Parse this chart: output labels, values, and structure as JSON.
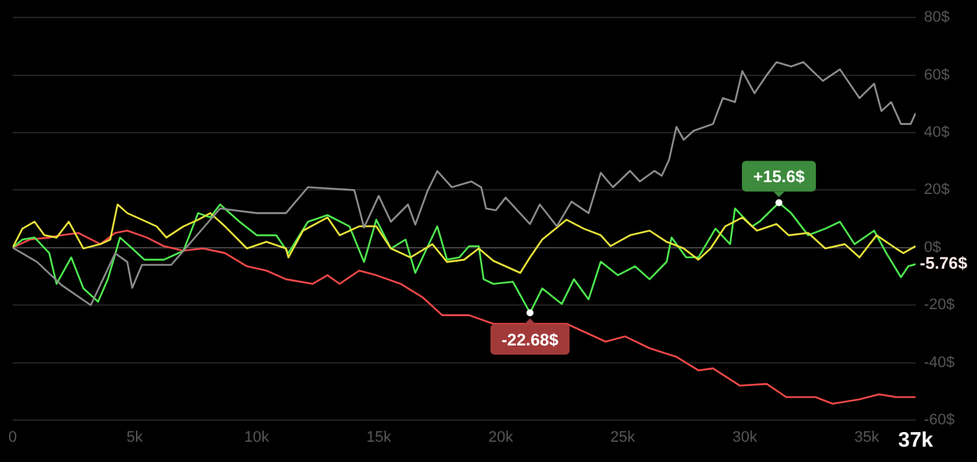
{
  "chart_data": {
    "type": "line",
    "xlim": [
      0,
      37000
    ],
    "xticks": [
      {
        "value": 0,
        "label": "0"
      },
      {
        "value": 5000,
        "label": "5k"
      },
      {
        "value": 10000,
        "label": "10k"
      },
      {
        "value": 15000,
        "label": "15k"
      },
      {
        "value": 20000,
        "label": "20k"
      },
      {
        "value": 25000,
        "label": "25k"
      },
      {
        "value": 30000,
        "label": "30k"
      },
      {
        "value": 35000,
        "label": "35k"
      },
      {
        "value": 37000,
        "label": "37k"
      }
    ],
    "ylim": [
      -60,
      80
    ],
    "yticks": [
      {
        "value": -60,
        "label": "-60$"
      },
      {
        "value": -40,
        "label": "-40$"
      },
      {
        "value": -20,
        "label": "-20$"
      },
      {
        "value": 0,
        "label": "0$"
      },
      {
        "value": 20,
        "label": "20$"
      },
      {
        "value": 40,
        "label": "40$"
      },
      {
        "value": 60,
        "label": "60$"
      },
      {
        "value": 80,
        "label": "80$"
      }
    ],
    "grid": "y",
    "legend": false,
    "marker": "none",
    "line_style": "solid",
    "series": [
      {
        "color": "#8c8c8c",
        "x": [
          0,
          1000,
          2000,
          3200,
          4200,
          4700,
          4900,
          5300,
          6500,
          8500,
          10000,
          11200,
          12100,
          14000,
          14400,
          15000,
          15500,
          16200,
          16500,
          17000,
          17400,
          18000,
          18800,
          19200,
          19400,
          19800,
          20200,
          21200,
          21600,
          22300,
          22900,
          23600,
          24100,
          24600,
          25300,
          25700,
          26300,
          26600,
          26900,
          27200,
          27500,
          27900,
          28700,
          29100,
          29600,
          29900,
          30400,
          30900,
          31300,
          31900,
          32400,
          33200,
          33900,
          34700,
          35300,
          35600,
          36000,
          36400,
          36800,
          37000
        ],
        "values": [
          0,
          -5,
          -13,
          -20,
          -2,
          -5,
          -14,
          -6,
          -6,
          13.6,
          12,
          12,
          21,
          20,
          7,
          18,
          9,
          15,
          8,
          19.7,
          26.6,
          21,
          23,
          21,
          13.6,
          13,
          17.4,
          8.2,
          15,
          7.4,
          16,
          12,
          26,
          21,
          26.7,
          23,
          26.7,
          25,
          30.6,
          42,
          37.5,
          40.6,
          43,
          52,
          50.6,
          61.4,
          53.7,
          60,
          64.5,
          63,
          64.5,
          58,
          62,
          52,
          57,
          47.5,
          50.6,
          43,
          43,
          46.8
        ]
      },
      {
        "color": "#e8e23a",
        "x": [
          0,
          400,
          900,
          1300,
          1800,
          2300,
          2900,
          3600,
          4000,
          4300,
          4700,
          5300,
          5900,
          6300,
          7000,
          7600,
          8100,
          8700,
          9600,
          10400,
          11200,
          11300,
          11900,
          12900,
          13400,
          14200,
          14900,
          15500,
          16300,
          17200,
          17800,
          18500,
          19100,
          19700,
          20800,
          21200,
          21700,
          22700,
          23400,
          24100,
          24500,
          25300,
          26100,
          26800,
          27500,
          28100,
          28600,
          29200,
          29900,
          30500,
          31300,
          31800,
          32600,
          33300,
          34100,
          34700,
          35400,
          36200,
          36500,
          37000
        ],
        "values": [
          0,
          6.6,
          9,
          4.3,
          3.5,
          9,
          -0.3,
          1.2,
          2.8,
          15,
          12,
          9.7,
          7.4,
          3.5,
          7.4,
          9.7,
          12,
          7.4,
          -0.3,
          2,
          -0.3,
          -3.4,
          5.9,
          10.5,
          4.3,
          7.4,
          7.4,
          -0.3,
          -3.4,
          1.2,
          -5,
          -4.2,
          -0.3,
          -4.6,
          -8.8,
          -3.4,
          2.8,
          9.7,
          6.6,
          4.3,
          0.5,
          4.3,
          5.9,
          2,
          -0.3,
          -4.2,
          -0.3,
          7.4,
          10.5,
          5.9,
          8.2,
          4.3,
          5.1,
          -0.3,
          1.2,
          -3.4,
          4.3,
          -0.3,
          -1.9,
          0.5
        ]
      },
      {
        "color": "#4ee84e",
        "x": [
          0,
          400,
          900,
          1500,
          1800,
          2400,
          2900,
          3500,
          3900,
          4400,
          4900,
          5400,
          6200,
          7000,
          7600,
          8100,
          8500,
          9300,
          10000,
          10800,
          11300,
          12100,
          12900,
          13800,
          14400,
          14900,
          15500,
          16100,
          16500,
          17400,
          17800,
          18300,
          18700,
          19100,
          19300,
          19700,
          20500,
          21200,
          21700,
          22500,
          23000,
          23600,
          24100,
          24800,
          25500,
          26100,
          26800,
          27000,
          27600,
          28100,
          28800,
          29400,
          29600,
          30300,
          30600,
          31400,
          31900,
          32600,
          33300,
          33900,
          34500,
          35300,
          35800,
          36400,
          36700,
          37000
        ],
        "values": [
          0,
          2.8,
          3.5,
          -1.9,
          -12.6,
          -3.4,
          -14.2,
          -18.8,
          -11,
          3.5,
          -0.3,
          -4.2,
          -4.2,
          -1.1,
          12,
          10.5,
          15,
          9,
          4.3,
          4.3,
          -1.9,
          9,
          11.3,
          7.4,
          -5,
          9.7,
          -0.3,
          2.8,
          -8.8,
          7.4,
          -4.2,
          -3.4,
          0.5,
          0.5,
          -11,
          -12.6,
          -11.9,
          -22.68,
          -14.2,
          -19.6,
          -11,
          -18,
          -4.9,
          -9.6,
          -6.5,
          -11,
          -4.9,
          3.5,
          -3.4,
          -3.4,
          6.6,
          1.2,
          13.6,
          7.4,
          9,
          15.6,
          12,
          4.3,
          6.6,
          9,
          1.2,
          5.9,
          -1.9,
          -10.3,
          -6.5,
          -5.76
        ]
      },
      {
        "color": "#f04848",
        "x": [
          0,
          700,
          1500,
          2000,
          2700,
          3600,
          4200,
          4700,
          5500,
          6200,
          7000,
          7800,
          8700,
          9600,
          10400,
          11200,
          12300,
          12900,
          13400,
          14200,
          14900,
          15900,
          16800,
          17600,
          18700,
          19700,
          22700,
          24300,
          25100,
          26100,
          27200,
          28100,
          28700,
          29800,
          30900,
          31700,
          32900,
          33600,
          34700,
          35500,
          36200,
          37000
        ],
        "values": [
          0,
          2.8,
          3.5,
          4.3,
          5.1,
          1.2,
          5.1,
          5.9,
          3.5,
          0.5,
          -1.1,
          -0.3,
          -1.9,
          -6.5,
          -8,
          -11,
          -12.6,
          -9.6,
          -12.6,
          -8,
          -9.6,
          -12.6,
          -17.3,
          -23.5,
          -23.5,
          -26.5,
          -26.5,
          -32.7,
          -30.9,
          -35,
          -38,
          -42.7,
          -42,
          -48,
          -47.4,
          -52,
          -52,
          -54.3,
          -52.8,
          -51,
          -52,
          -52
        ]
      }
    ],
    "annotations": [
      {
        "text": "+15.6$",
        "x": 31400,
        "y": 15.6
      },
      {
        "text": "-22.68$",
        "x": 21200,
        "y": -22.68
      },
      {
        "text": "-5.76$",
        "x": 37000,
        "y": -5.76
      }
    ]
  }
}
